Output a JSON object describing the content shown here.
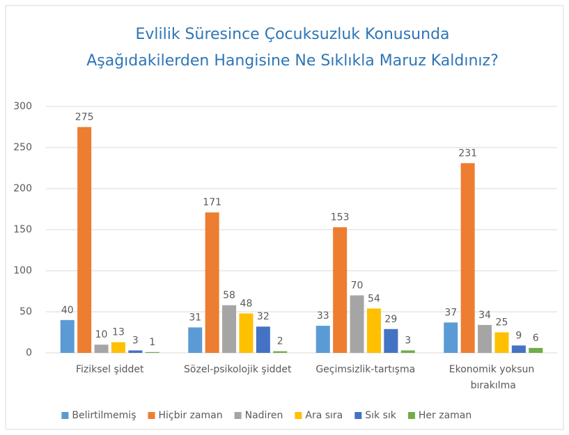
{
  "chart_data": {
    "type": "bar",
    "title": [
      "Evlilik Süresince Çocuksuzluk Konusunda",
      "Aşağıdakilerden Hangisine Ne Sıklıkla Maruz Kaldınız?"
    ],
    "categories": [
      "Fiziksel şiddet",
      "Sözel-psikolojik şiddet",
      "Geçimsizlik-tartışma",
      "Ekonomik yoksun bırakılma"
    ],
    "series": [
      {
        "name": "Belirtilmemiş",
        "color": "#5B9BD5",
        "values": [
          40,
          31,
          33,
          37
        ]
      },
      {
        "name": "Hiçbir zaman",
        "color": "#ED7D31",
        "values": [
          275,
          171,
          153,
          231
        ]
      },
      {
        "name": "Nadiren",
        "color": "#A5A5A5",
        "values": [
          10,
          58,
          70,
          34
        ]
      },
      {
        "name": "Ara sıra",
        "color": "#FFC000",
        "values": [
          13,
          48,
          54,
          25
        ]
      },
      {
        "name": "Sık sık",
        "color": "#4472C4",
        "values": [
          3,
          32,
          29,
          9
        ]
      },
      {
        "name": "Her zaman",
        "color": "#70AD47",
        "values": [
          1,
          2,
          3,
          6
        ]
      }
    ],
    "ylim": [
      0,
      300
    ],
    "yticks": [
      0,
      50,
      100,
      150,
      200,
      250,
      300
    ],
    "grid": true,
    "legend": "bottom"
  }
}
